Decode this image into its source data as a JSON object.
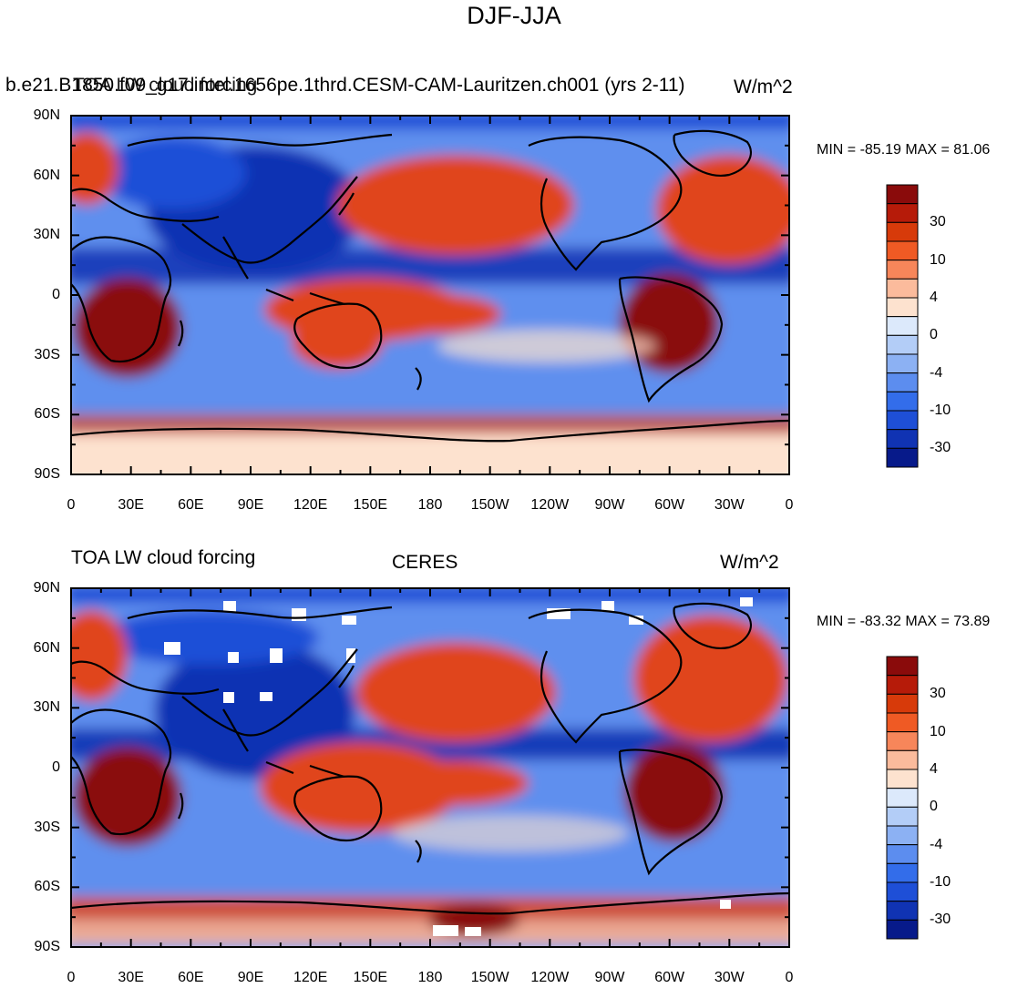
{
  "figure": {
    "title": "DJF-JJA"
  },
  "panels": [
    {
      "left_label": "TOA LW cloud forcing",
      "left_label_overlap": "b.e21.B1850.f09_g17.intel.1656pe.1thrd.CESM-CAM-Lauritzen.ch001 (yrs 2-11)",
      "center_label": "b.e21.B1850.f09_g17.intel.1656pe.1thrd.CESM-CAM-Lauritzen.ch001 (yrs 2-11)",
      "units": "W/m^2",
      "min_max": "MIN = -85.19 MAX =  81.06"
    },
    {
      "left_label": "TOA LW cloud forcing",
      "center_label": "CERES",
      "units": "W/m^2",
      "min_max": "MIN = -83.32 MAX =  73.89"
    }
  ],
  "axes": {
    "lat_labels": [
      "90N",
      "60N",
      "30N",
      "0",
      "30S",
      "60S",
      "90S"
    ],
    "lon_labels": [
      "0",
      "30E",
      "60E",
      "90E",
      "120E",
      "150E",
      "180",
      "150W",
      "120W",
      "90W",
      "60W",
      "30W",
      "0"
    ]
  },
  "colorbar": {
    "labels": [
      "30",
      "10",
      "4",
      "0",
      "-4",
      "-10",
      "-30"
    ],
    "colors": [
      "#8a0b0b",
      "#b61b09",
      "#d73a0a",
      "#ef5a24",
      "#f7865a",
      "#fbbb9c",
      "#fde2cf",
      "#dce9fb",
      "#b3cdf7",
      "#8cb1f3",
      "#5c8def",
      "#336dea",
      "#1e4fd7",
      "#1033b3",
      "#071a8a"
    ]
  },
  "map_colors": {
    "ocean_neutral": "#5f8fee",
    "blue_strong": "#1e4fd7",
    "blue_deep": "#1033b3",
    "red_mid": "#e0441a",
    "red_strong": "#8a0b0b",
    "pale": "#fde2cf",
    "coast": "#000000",
    "missing": "#ffffff"
  }
}
